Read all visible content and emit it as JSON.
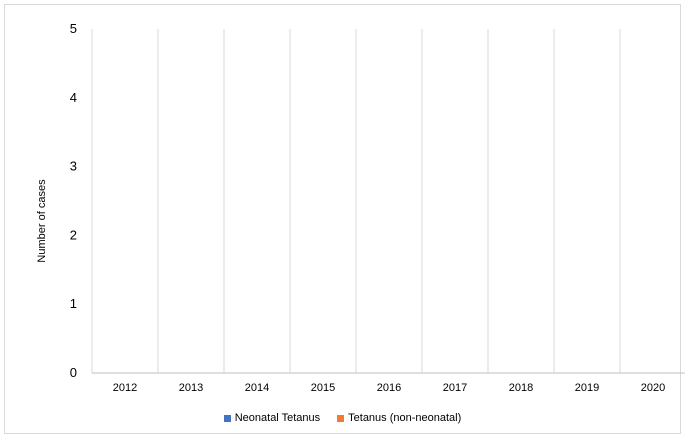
{
  "colors": {
    "neonatal": "#4472c4",
    "non_neonatal": "#ed7d31",
    "grid": "#d9d9d9",
    "axis": "#bfbfbf",
    "frame": "#d9d9d9"
  },
  "chart_data": {
    "type": "bar",
    "title": "",
    "xlabel": "",
    "ylabel": "Number of cases",
    "categories": [
      "2012",
      "2013",
      "2014",
      "2015",
      "2016",
      "2017",
      "2018",
      "2019",
      "2020"
    ],
    "yticks": [
      "0",
      "1",
      "2",
      "3",
      "4",
      "5"
    ],
    "ylim": [
      0,
      5
    ],
    "grid": "vertical category separators",
    "legend_position": "bottom",
    "series": [
      {
        "name": "Neonatal Tetanus",
        "values": [
          0,
          0,
          0,
          0,
          0,
          0,
          0,
          0,
          0
        ],
        "color": "#4472c4"
      },
      {
        "name": "Tetanus (non-neonatal)",
        "values": [
          0,
          0,
          0,
          0,
          0,
          0,
          0,
          0,
          0
        ],
        "color": "#ed7d31"
      }
    ]
  }
}
